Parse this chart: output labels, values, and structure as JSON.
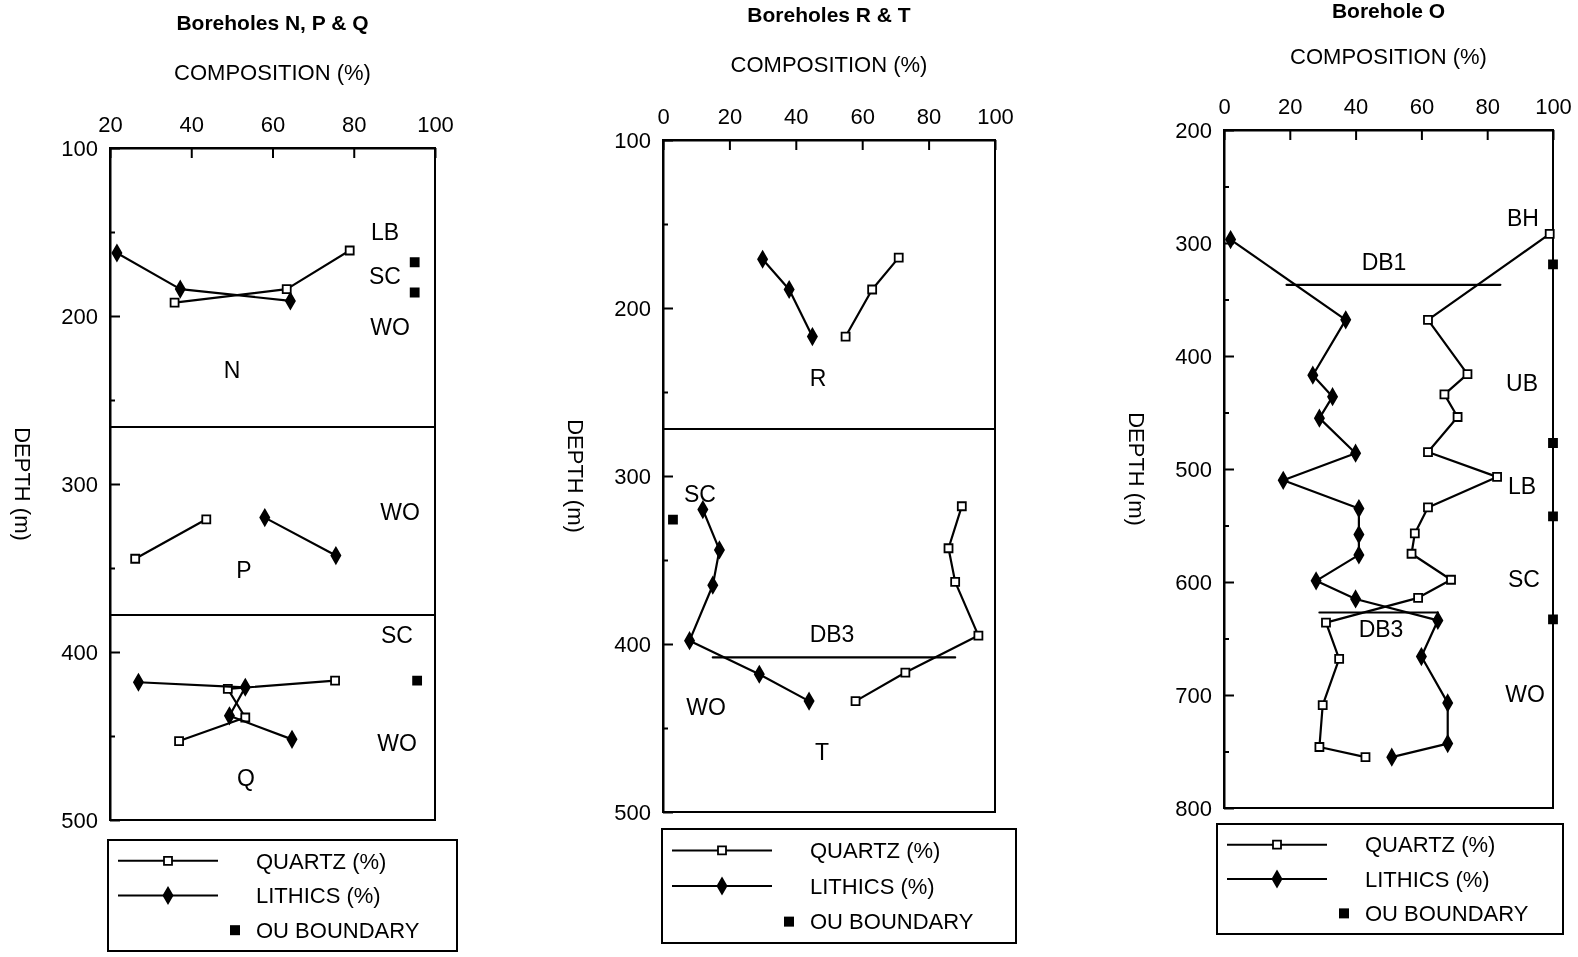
{
  "chart_data": [
    {
      "type": "line",
      "title": "Boreholes N, P & Q",
      "xlabel": "COMPOSITION (%)",
      "ylabel": "DEPTH (m)",
      "xlim": [
        20,
        100
      ],
      "xticks": [
        20,
        40,
        60,
        80,
        100
      ],
      "ylim": [
        500,
        100
      ],
      "yticks": [
        100,
        {
          "value": 150,
          "label": null
        },
        200,
        {
          "value": 250,
          "label": null
        },
        300,
        {
          "value": 350,
          "label": null
        },
        400,
        {
          "value": 450,
          "label": null
        },
        500
      ],
      "legend": "bottom",
      "grid": false,
      "series": [
        {
          "name": "QUARTZ (%)",
          "type": "line",
          "marker": "square",
          "color": "#000000",
          "x": [
            35.9,
            63.5,
            79,
            null,
            26.2,
            43.7,
            null,
            75.4,
            49,
            53.3,
            37
          ],
          "values": [
            192,
            184,
            161,
            null,
            344.5,
            321,
            null,
            417,
            422,
            439,
            453
          ]
        },
        {
          "name": "LITHICS (%)",
          "type": "line",
          "marker": "diamond",
          "color": "#000000",
          "x": [
            21.7,
            37.3,
            64.4,
            null,
            58.1,
            75.6,
            null,
            27,
            53.3,
            49.4,
            64.8
          ],
          "values": [
            162.5,
            184,
            191,
            null,
            320,
            342.6,
            null,
            418,
            421,
            438,
            452
          ]
        },
        {
          "name": "OU BOUNDARY",
          "type": "scatter",
          "marker": "square",
          "color": "#000000",
          "x": [
            95,
            95,
            95.6
          ],
          "values": [
            168,
            186,
            417
          ]
        }
      ],
      "ref_lines": [
        {
          "axis": "y",
          "value": 266
        },
        {
          "axis": "y",
          "value": 378
        }
      ],
      "annotations": [
        "LB",
        "SC",
        "WO",
        "N",
        "WO",
        "P",
        "SC",
        "WO",
        "Q"
      ]
    },
    {
      "type": "line",
      "title": "Boreholes R & T",
      "xlabel": "COMPOSITION (%)",
      "ylabel": "DEPTH (m)",
      "xlim": [
        0,
        100
      ],
      "xticks": [
        0,
        20,
        40,
        60,
        80,
        100
      ],
      "ylim": [
        500,
        100
      ],
      "yticks": [
        100,
        {
          "value": 150,
          "label": null
        },
        200,
        {
          "value": 250,
          "label": null
        },
        300,
        {
          "value": 350,
          "label": null
        },
        400,
        {
          "value": 450,
          "label": null
        },
        500
      ],
      "legend": "bottom",
      "grid": false,
      "series": [
        {
          "name": "QUARTZ (%)",
          "type": "line",
          "marker": "square",
          "color": "#000000",
          "x": [
            71,
            63,
            55,
            null,
            90,
            86,
            88,
            95,
            73,
            58
          ],
          "values": [
            170,
            189,
            217,
            null,
            318,
            343,
            363,
            395,
            417,
            434
          ]
        },
        {
          "name": "LITHICS (%)",
          "type": "line",
          "marker": "diamond",
          "color": "#000000",
          "x": [
            30,
            38,
            45,
            null,
            12,
            17,
            15,
            8,
            29,
            44
          ],
          "values": [
            171,
            189,
            217,
            null,
            320,
            344,
            365,
            398,
            418,
            434
          ]
        },
        {
          "name": "OU BOUNDARY",
          "type": "scatter",
          "marker": "square",
          "color": "#000000",
          "x": [
            3
          ],
          "values": [
            326
          ]
        },
        {
          "type": "line",
          "marker": "none",
          "color": "#000000",
          "x": [
            15,
            88
          ],
          "values": [
            408,
            408
          ]
        }
      ],
      "ref_lines": [
        {
          "axis": "y",
          "value": 272
        }
      ],
      "annotations": [
        "R",
        "SC",
        "DB3",
        "WO",
        "T"
      ]
    },
    {
      "type": "line",
      "title": "Borehole  O",
      "xlabel": "COMPOSITION (%)",
      "ylabel": "DEPTH (m)",
      "xlim": [
        0,
        100
      ],
      "xticks": [
        0,
        20,
        40,
        60,
        80,
        100
      ],
      "ylim": [
        800,
        200
      ],
      "yticks": [
        200,
        {
          "value": 250,
          "label": null
        },
        300,
        {
          "value": 350,
          "label": null
        },
        400,
        {
          "value": 450,
          "label": null
        },
        500,
        {
          "value": 550,
          "label": null
        },
        600,
        {
          "value": 650,
          "label": null
        },
        700,
        {
          "value": 750,
          "label": null
        },
        800
      ],
      "legend": "bottom",
      "grid": false,
      "series": [
        {
          "name": "QUARTZ (%)",
          "type": "line",
          "marker": "square",
          "color": "#000000",
          "x": [
            99,
            62,
            74,
            67,
            71,
            62,
            83,
            62,
            58,
            57,
            69,
            59,
            31,
            35,
            30,
            29,
            43
          ],
          "values": [
            292,
            368,
            416,
            434,
            454,
            485,
            507,
            534,
            557,
            575,
            598,
            614,
            636,
            668,
            709,
            746,
            755
          ]
        },
        {
          "name": "LITHICS (%)",
          "type": "line",
          "marker": "diamond",
          "color": "#000000",
          "x": [
            2,
            37,
            27,
            33,
            29,
            40,
            18,
            41,
            41,
            41,
            28,
            40,
            65,
            60,
            68,
            68,
            51
          ],
          "values": [
            297,
            368,
            417,
            436,
            455,
            486,
            510,
            535,
            558,
            576,
            599,
            615,
            634,
            666,
            707,
            743,
            755
          ]
        },
        {
          "name": "OU BOUNDARY",
          "type": "scatter",
          "marker": "square",
          "color": "#000000",
          "x": [
            100,
            100,
            100,
            100
          ],
          "values": [
            319,
            477,
            542,
            633
          ]
        },
        {
          "type": "line",
          "marker": "none",
          "color": "#000000",
          "x": [
            19,
            84
          ],
          "values": [
            337,
            337
          ]
        },
        {
          "type": "line",
          "marker": "none",
          "color": "#000000",
          "x": [
            29,
            65
          ],
          "values": [
            627,
            627
          ]
        }
      ],
      "annotations": [
        "BH",
        "DB1",
        "UB",
        "LB",
        "SC",
        "DB3",
        "WO"
      ]
    }
  ]
}
